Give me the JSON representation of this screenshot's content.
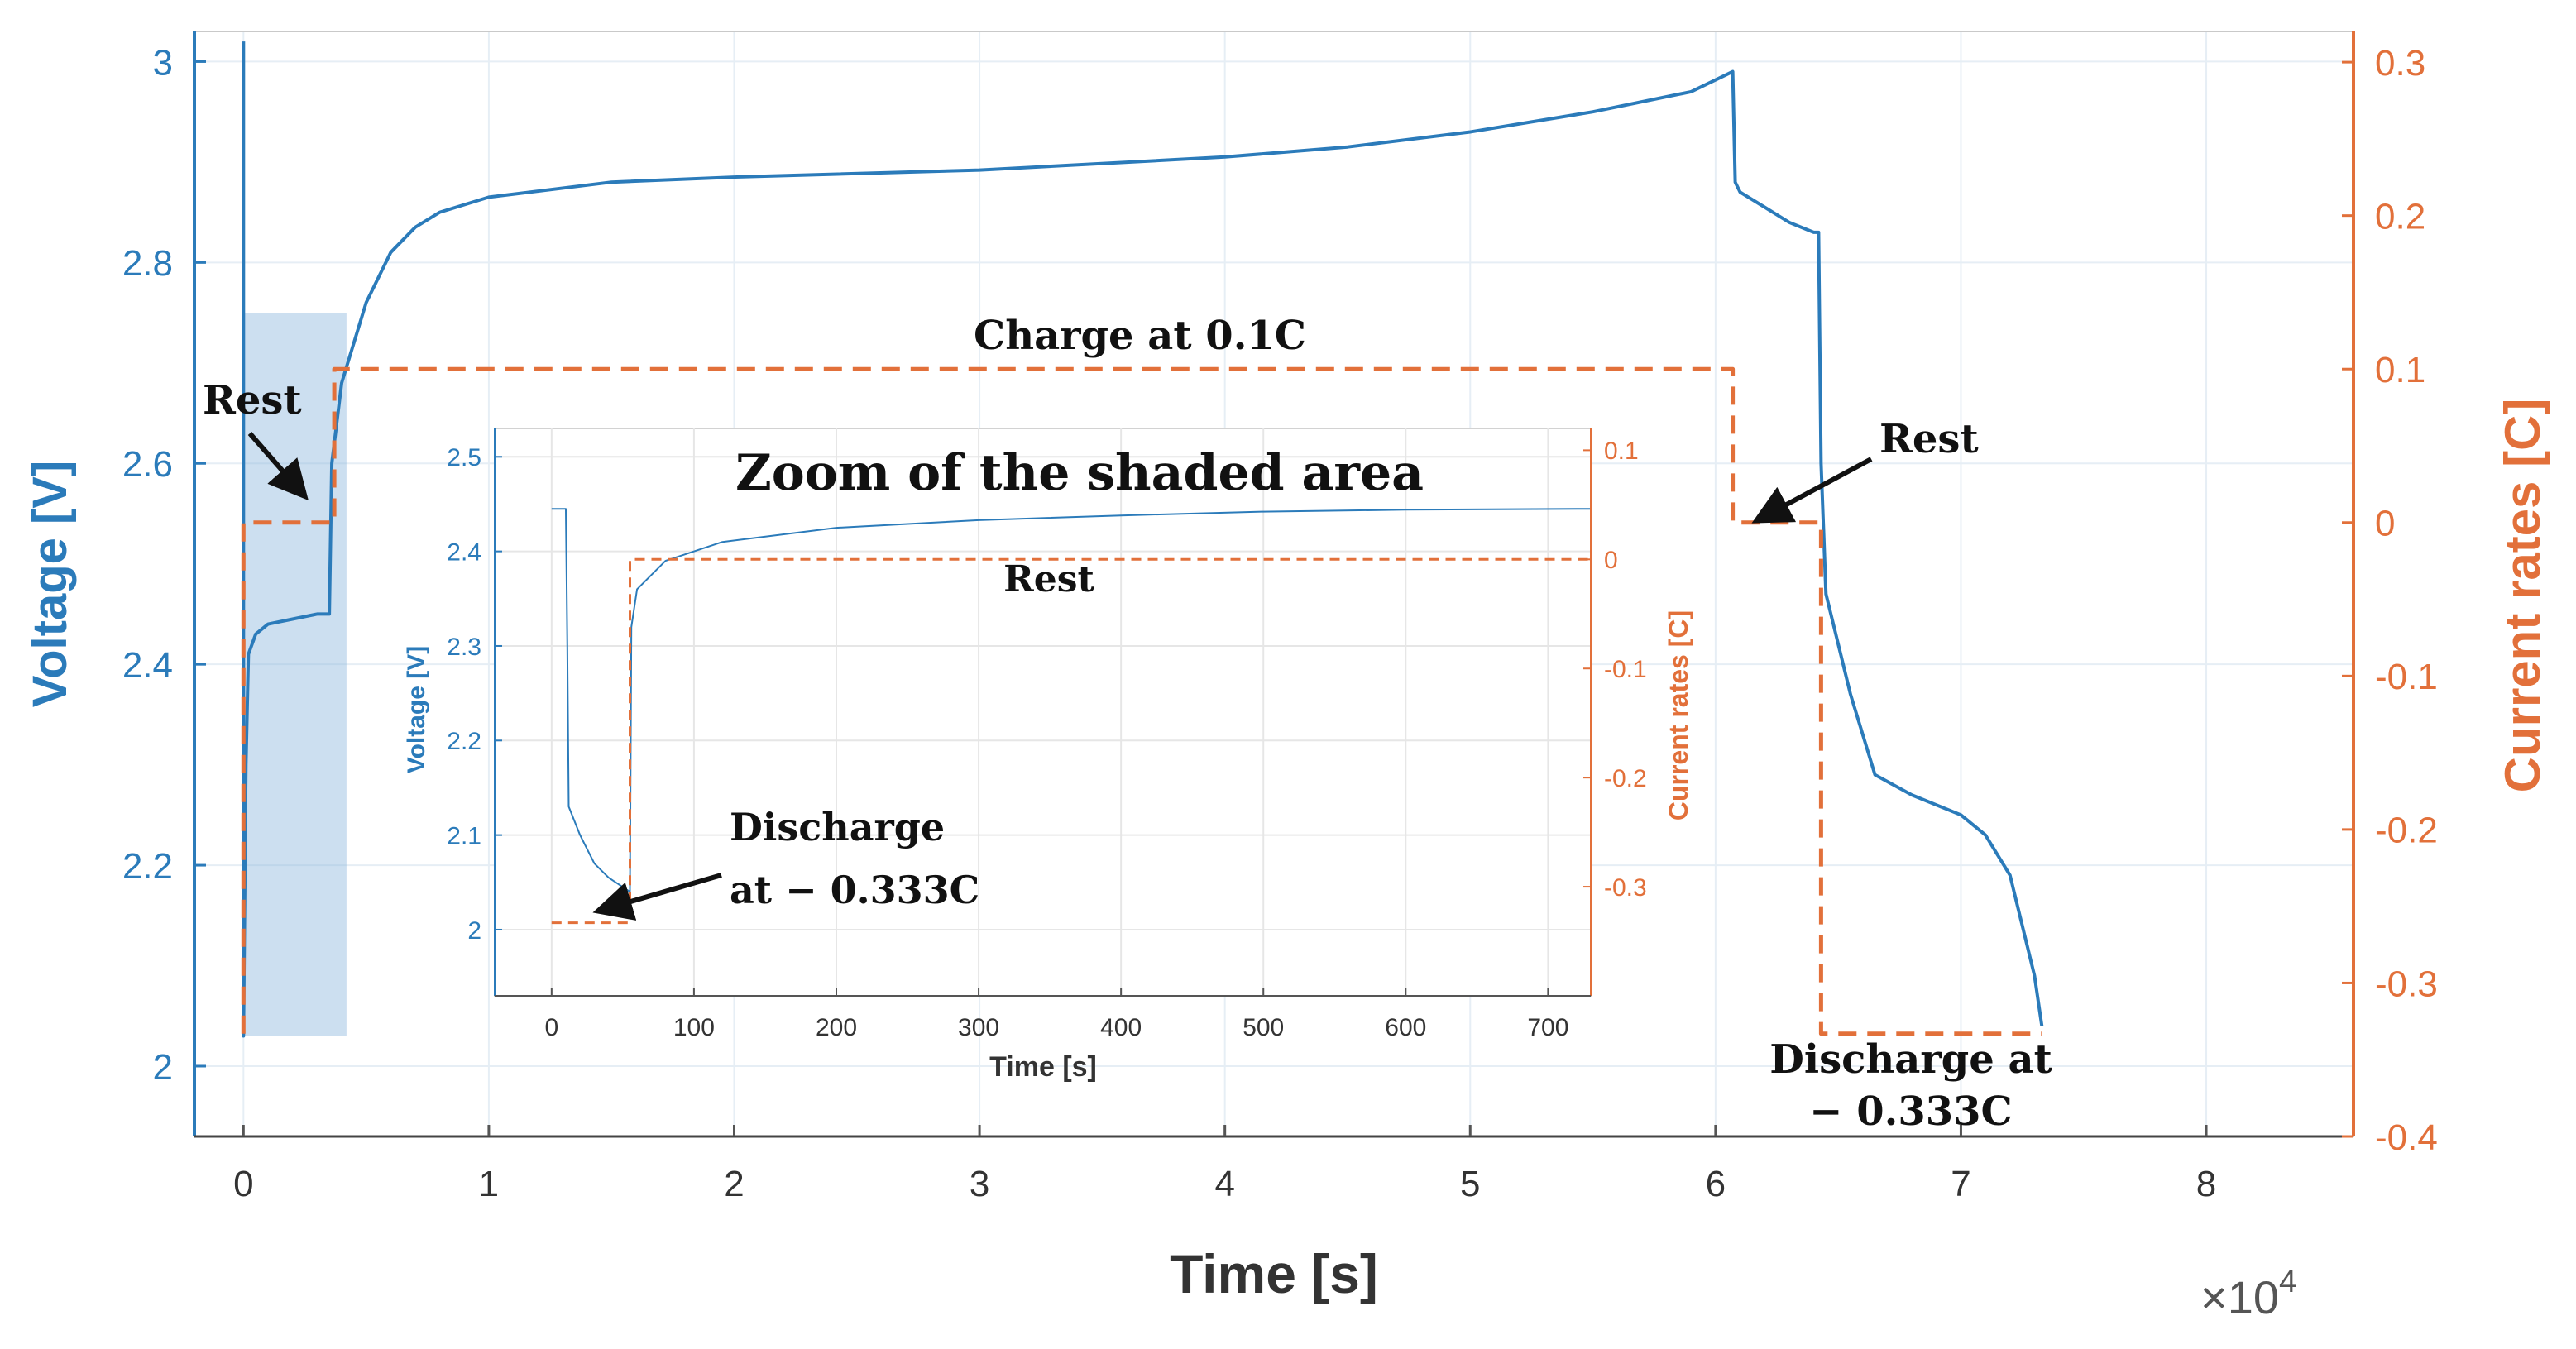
{
  "chart_data": {
    "main": {
      "type": "line",
      "xlabel": "Time [s]",
      "ylabel_left": "Voltage [V]",
      "ylabel_right": "Current rates [C]",
      "x_multiplier": "×10",
      "x_multiplier_exp": "4",
      "xlim": [
        -0.2,
        8.6
      ],
      "ylim_left": [
        1.93,
        3.03
      ],
      "ylim_right": [
        -0.4,
        0.32
      ],
      "x_ticks": [
        0,
        1,
        2,
        3,
        4,
        5,
        6,
        7,
        8
      ],
      "y_left_ticks": [
        2,
        2.2,
        2.4,
        2.6,
        2.8,
        3
      ],
      "y_right_ticks": [
        -0.4,
        -0.3,
        -0.2,
        -0.1,
        0,
        0.1,
        0.2,
        0.3
      ],
      "grid": true,
      "shaded_region": {
        "x": [
          0,
          0.42
        ],
        "y": [
          2.03,
          2.75
        ]
      },
      "series": [
        {
          "name": "Voltage",
          "axis": "left",
          "color": "#2b7bba",
          "points": [
            [
              0,
              3.02
            ],
            [
              0,
              2.03
            ],
            [
              0.01,
              2.3
            ],
            [
              0.02,
              2.41
            ],
            [
              0.05,
              2.43
            ],
            [
              0.1,
              2.44
            ],
            [
              0.2,
              2.445
            ],
            [
              0.3,
              2.45
            ],
            [
              0.35,
              2.45
            ],
            [
              0.36,
              2.6
            ],
            [
              0.4,
              2.68
            ],
            [
              0.5,
              2.76
            ],
            [
              0.6,
              2.81
            ],
            [
              0.7,
              2.835
            ],
            [
              0.8,
              2.85
            ],
            [
              1.0,
              2.865
            ],
            [
              1.5,
              2.88
            ],
            [
              2.0,
              2.885
            ],
            [
              3.0,
              2.892
            ],
            [
              4.0,
              2.905
            ],
            [
              4.5,
              2.915
            ],
            [
              5.0,
              2.93
            ],
            [
              5.5,
              2.95
            ],
            [
              5.9,
              2.97
            ],
            [
              6.07,
              2.99
            ],
            [
              6.08,
              2.88
            ],
            [
              6.1,
              2.87
            ],
            [
              6.2,
              2.855
            ],
            [
              6.3,
              2.84
            ],
            [
              6.4,
              2.83
            ],
            [
              6.42,
              2.83
            ],
            [
              6.43,
              2.6
            ],
            [
              6.45,
              2.47
            ],
            [
              6.55,
              2.37
            ],
            [
              6.65,
              2.29
            ],
            [
              6.8,
              2.27
            ],
            [
              7.0,
              2.25
            ],
            [
              7.1,
              2.23
            ],
            [
              7.2,
              2.19
            ],
            [
              7.3,
              2.09
            ],
            [
              7.33,
              2.04
            ]
          ]
        },
        {
          "name": "Current rate",
          "axis": "right",
          "color": "#e2703a",
          "dashed": true,
          "points": [
            [
              0,
              -0.333
            ],
            [
              0,
              0
            ],
            [
              0.37,
              0
            ],
            [
              0.37,
              0.1
            ],
            [
              6.07,
              0.1
            ],
            [
              6.07,
              0
            ],
            [
              6.43,
              0
            ],
            [
              6.43,
              -0.333
            ],
            [
              7.33,
              -0.333
            ]
          ]
        }
      ]
    },
    "inset": {
      "type": "line",
      "title": "Zoom of the shaded area",
      "xlabel": "Time [s]",
      "ylabel_left": "Voltage [V]",
      "ylabel_right": "Current rates [C]",
      "xlim": [
        -40,
        730
      ],
      "ylim_left": [
        1.93,
        2.53
      ],
      "ylim_right": [
        -0.4,
        0.12
      ],
      "x_ticks": [
        0,
        100,
        200,
        300,
        400,
        500,
        600,
        700
      ],
      "y_left_ticks": [
        2,
        2.1,
        2.2,
        2.3,
        2.4,
        2.5
      ],
      "y_right_ticks": [
        -0.3,
        -0.2,
        -0.1,
        0,
        0.1
      ],
      "series": [
        {
          "name": "Voltage",
          "axis": "left",
          "color": "#2b7bba",
          "points": [
            [
              0,
              2.445
            ],
            [
              10,
              2.445
            ],
            [
              11,
              2.3
            ],
            [
              12,
              2.13
            ],
            [
              20,
              2.1
            ],
            [
              30,
              2.07
            ],
            [
              40,
              2.055
            ],
            [
              55,
              2.04
            ],
            [
              56,
              2.32
            ],
            [
              60,
              2.36
            ],
            [
              80,
              2.39
            ],
            [
              120,
              2.41
            ],
            [
              200,
              2.425
            ],
            [
              300,
              2.433
            ],
            [
              400,
              2.438
            ],
            [
              500,
              2.442
            ],
            [
              600,
              2.444
            ],
            [
              730,
              2.445
            ]
          ]
        },
        {
          "name": "Current rate",
          "axis": "right",
          "color": "#e2703a",
          "dashed": true,
          "points": [
            [
              0,
              -0.333
            ],
            [
              55,
              -0.333
            ],
            [
              55,
              0
            ],
            [
              730,
              0
            ]
          ]
        }
      ]
    },
    "annotations": {
      "charge": "Charge at 0.1C",
      "rest_left": "Rest",
      "rest_right": "Rest",
      "discharge_main_1": "Discharge at",
      "discharge_main_2": "− 0.333C",
      "inset_rest": "Rest",
      "inset_discharge_1": "Discharge",
      "inset_discharge_2": "at − 0.333C"
    }
  }
}
